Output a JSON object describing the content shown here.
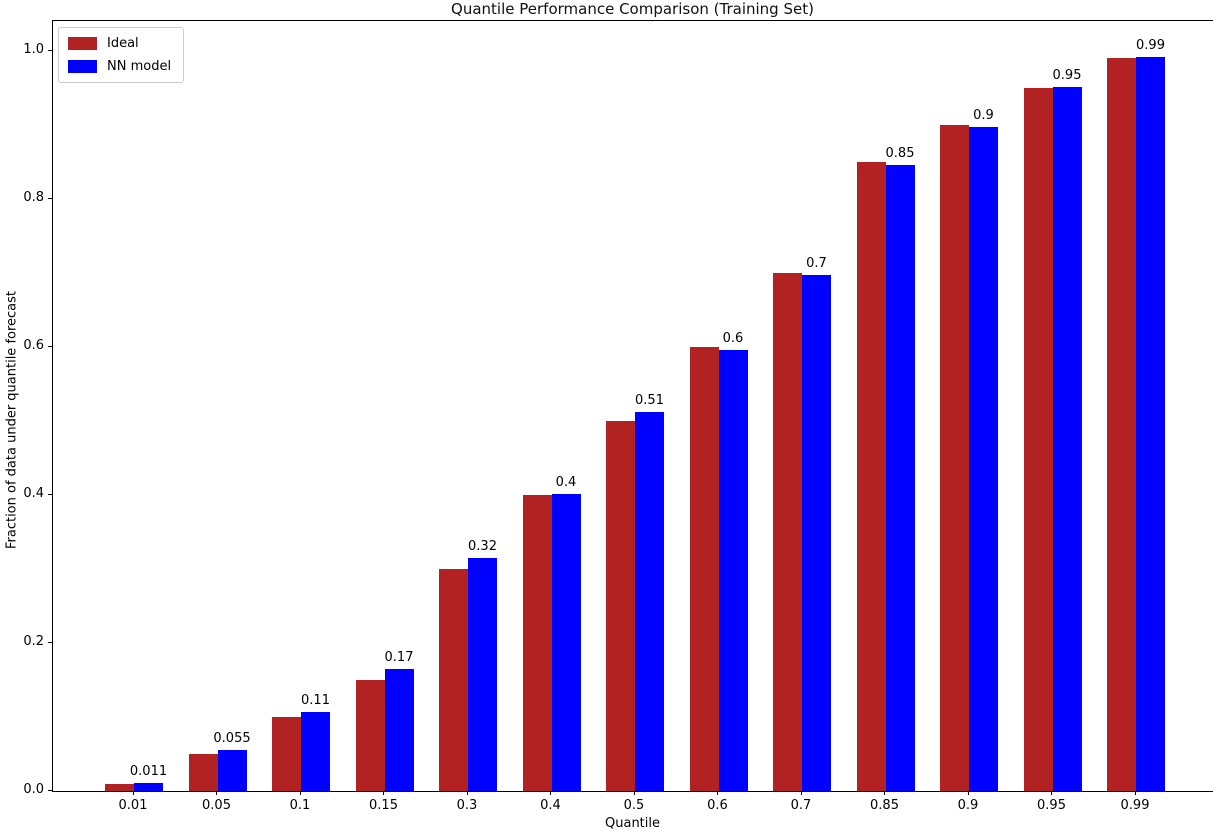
{
  "chart_data": {
    "type": "bar",
    "title": "Quantile Performance Comparison (Training Set)",
    "xlabel": "Quantile",
    "ylabel": "Fraction of data under quantile forecast",
    "categories": [
      "0.01",
      "0.05",
      "0.1",
      "0.15",
      "0.3",
      "0.4",
      "0.5",
      "0.6",
      "0.7",
      "0.85",
      "0.9",
      "0.95",
      "0.99"
    ],
    "series": [
      {
        "name": "Ideal",
        "color": "#b22222",
        "values": [
          0.01,
          0.05,
          0.1,
          0.15,
          0.3,
          0.4,
          0.5,
          0.6,
          0.7,
          0.85,
          0.9,
          0.95,
          0.99
        ]
      },
      {
        "name": "NN model",
        "color": "#0000ff",
        "values": [
          0.011,
          0.055,
          0.107,
          0.165,
          0.315,
          0.402,
          0.512,
          0.596,
          0.697,
          0.846,
          0.897,
          0.951,
          0.992
        ],
        "bar_labels": [
          "0.011",
          "0.055",
          "0.11",
          "0.17",
          "0.32",
          "0.4",
          "0.51",
          "0.6",
          "0.7",
          "0.85",
          "0.9",
          "0.95",
          "0.99"
        ]
      }
    ],
    "ytick_labels": [
      "0.0",
      "0.2",
      "0.4",
      "0.6",
      "0.8",
      "1.0"
    ],
    "ytick_values": [
      0.0,
      0.2,
      0.4,
      0.6,
      0.8,
      1.0
    ],
    "ylim": [
      0,
      1.042
    ],
    "grid": false,
    "legend": {
      "position": "upper-left",
      "entries": [
        "Ideal",
        "NN model"
      ]
    },
    "background_color": "#ffffff",
    "axis_color": "#000000"
  }
}
